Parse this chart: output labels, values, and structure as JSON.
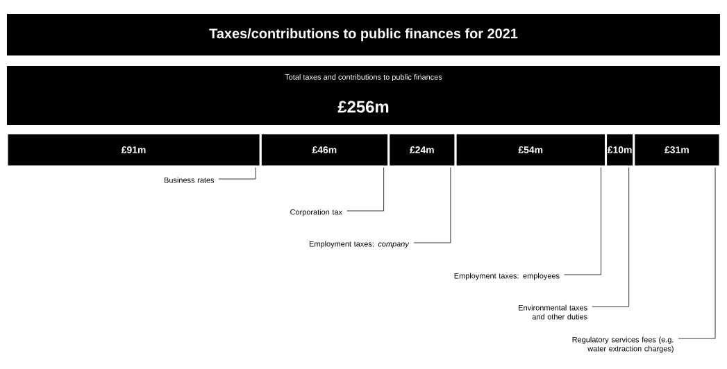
{
  "chart_data": {
    "type": "bar",
    "title": "Taxes/contributions to public finances for 2021",
    "subtitle": "Total taxes and contributions to public finances",
    "totals": [
      "£256m"
    ],
    "orientation": "horizontal",
    "stacked": true,
    "categories": [
      null
    ],
    "series": [
      {
        "name": "Business rates",
        "color": "#000000",
        "values": [
          91
        ],
        "value_labels": [
          "£91m"
        ]
      },
      {
        "name": "Corporation tax",
        "color": "#000000",
        "values": [
          46
        ],
        "value_labels": [
          "£46m"
        ]
      },
      {
        "name": "Employment taxes: *company*",
        "color": "#000000",
        "values": [
          24
        ],
        "value_labels": [
          "£24m"
        ]
      },
      {
        "name": "Employment taxes: employees",
        "color": "#000000",
        "values": [
          54
        ],
        "value_labels": [
          "£54m"
        ]
      },
      {
        "name": "Environmental taxes and other duties",
        "color": "#000000",
        "values": [
          10
        ],
        "value_labels": [
          "£10m"
        ]
      },
      {
        "name": "Regulatory services fees (e.g. water extraction charges)",
        "color": "#000000",
        "values": [
          31
        ],
        "value_labels": [
          "£31m"
        ]
      }
    ]
  }
}
